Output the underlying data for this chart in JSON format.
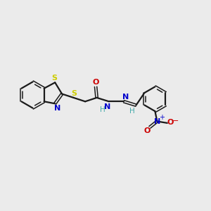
{
  "background_color": "#ebebeb",
  "bond_color": "#1a1a1a",
  "sulfur_color": "#cccc00",
  "nitrogen_color": "#0000cc",
  "oxygen_color": "#cc0000",
  "hydrazide_H_color": "#44aaaa",
  "figsize": [
    3.0,
    3.0
  ],
  "dpi": 100,
  "xlim": [
    0,
    10
  ],
  "ylim": [
    0,
    10
  ]
}
